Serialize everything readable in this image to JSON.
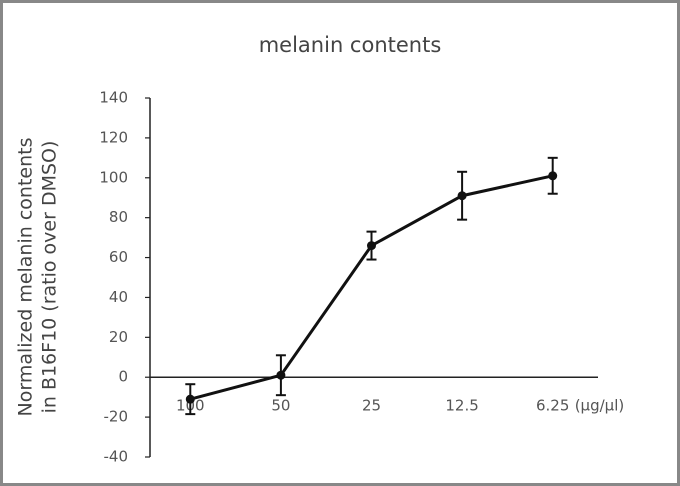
{
  "chart_data": {
    "type": "line",
    "title": "melanin contents",
    "y_label": [
      "Normalized melanin contents",
      "in B16F10 (ratio over DMSO)"
    ],
    "x_label": "(μg/μl)",
    "categories": [
      "100",
      "50",
      "25",
      "12.5",
      "6.25"
    ],
    "values": [
      -11,
      1,
      66,
      91,
      101
    ],
    "errors": [
      7.5,
      10,
      7,
      12,
      9
    ],
    "color": "#111111",
    "ylim": [
      -40,
      140
    ],
    "yticks": [
      -40,
      -20,
      0,
      20,
      40,
      60,
      80,
      100,
      120,
      140
    ],
    "grid": false
  }
}
